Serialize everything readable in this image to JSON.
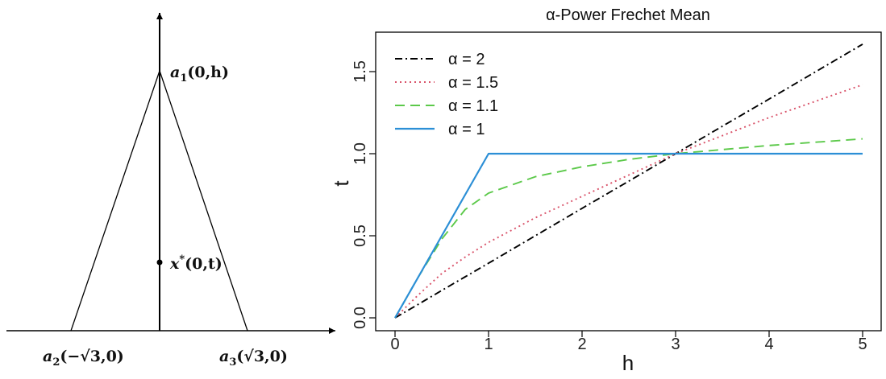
{
  "diagram": {
    "labels": {
      "a1": {
        "var": "a",
        "sub": "1",
        "rest": "(0,h)"
      },
      "xstar": {
        "var": "x",
        "sup": "*",
        "rest": "(0,t)"
      },
      "a2": {
        "var": "a",
        "sub": "2",
        "rest": "(−√3,0)"
      },
      "a3": {
        "var": "a",
        "sub": "3",
        "rest": "(√3,0)"
      }
    }
  },
  "chart_data": {
    "type": "line",
    "title": "α-Power Frechet Mean",
    "xlabel": "h",
    "ylabel": "t",
    "xlim": [
      0,
      5
    ],
    "ylim": [
      0,
      1.7
    ],
    "xticks": [
      "0",
      "1",
      "2",
      "3",
      "4",
      "5"
    ],
    "yticks": [
      "0.0",
      "0.5",
      "1.0",
      "1.5"
    ],
    "grid": false,
    "legend_position": "top-left",
    "x": [
      0,
      0.25,
      0.5,
      0.75,
      1,
      1.5,
      2,
      2.5,
      3,
      3.5,
      4,
      4.5,
      5
    ],
    "series": [
      {
        "name": "α = 2",
        "color": "#000000",
        "dash": "dashdot",
        "values": [
          0,
          0.083,
          0.167,
          0.25,
          0.333,
          0.5,
          0.667,
          0.833,
          1.0,
          1.167,
          1.333,
          1.5,
          1.667
        ]
      },
      {
        "name": "α = 1.5",
        "color": "#d9536a",
        "dash": "dotted",
        "values": [
          0,
          0.14,
          0.27,
          0.37,
          0.46,
          0.61,
          0.74,
          0.87,
          1.0,
          1.11,
          1.22,
          1.32,
          1.42
        ]
      },
      {
        "name": "α = 1.1",
        "color": "#5cc94a",
        "dash": "dashed",
        "values": [
          0,
          0.25,
          0.48,
          0.66,
          0.76,
          0.86,
          0.92,
          0.965,
          1.0,
          1.025,
          1.05,
          1.07,
          1.09
        ]
      },
      {
        "name": "α = 1",
        "color": "#2c8fd6",
        "dash": "solid",
        "values": [
          0,
          0.25,
          0.5,
          0.75,
          1.0,
          1.0,
          1.0,
          1.0,
          1.0,
          1.0,
          1.0,
          1.0,
          1.0
        ]
      }
    ]
  }
}
